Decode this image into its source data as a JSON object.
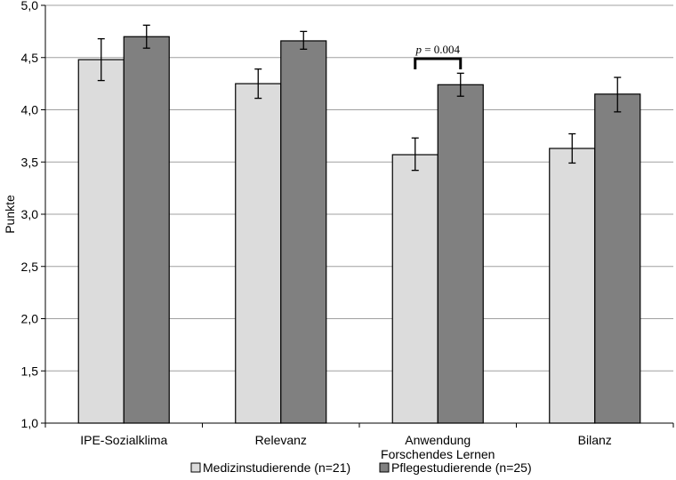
{
  "chart_data": {
    "type": "bar",
    "ylabel": "Punkte",
    "ylim": [
      1.0,
      5.0
    ],
    "yticks": [
      "1,0",
      "1,5",
      "2,0",
      "2,5",
      "3,0",
      "3,5",
      "4,0",
      "4,5",
      "5,0"
    ],
    "grid": true,
    "categories": [
      [
        "IPE-Sozialklima"
      ],
      [
        "Relevanz"
      ],
      [
        "Anwendung",
        "Forschendes Lernen"
      ],
      [
        "Bilanz"
      ]
    ],
    "series": [
      {
        "name": "Medizinstudierende (n=21)",
        "color": "#dcdcdc",
        "values": [
          4.48,
          4.25,
          3.57,
          3.63
        ],
        "error_low": [
          4.28,
          4.11,
          3.42,
          3.49
        ],
        "error_high": [
          4.68,
          4.39,
          3.73,
          3.77
        ]
      },
      {
        "name": "Pflegestudierende (n=25)",
        "color": "#808080",
        "values": [
          4.7,
          4.66,
          4.24,
          4.15
        ],
        "error_low": [
          4.59,
          4.58,
          4.13,
          3.98
        ],
        "error_high": [
          4.81,
          4.75,
          4.35,
          4.31
        ]
      }
    ],
    "annotation": {
      "text_italic": "p",
      "text_rest": " = 0.004",
      "category_index": 2
    },
    "legend_position": "bottom"
  }
}
